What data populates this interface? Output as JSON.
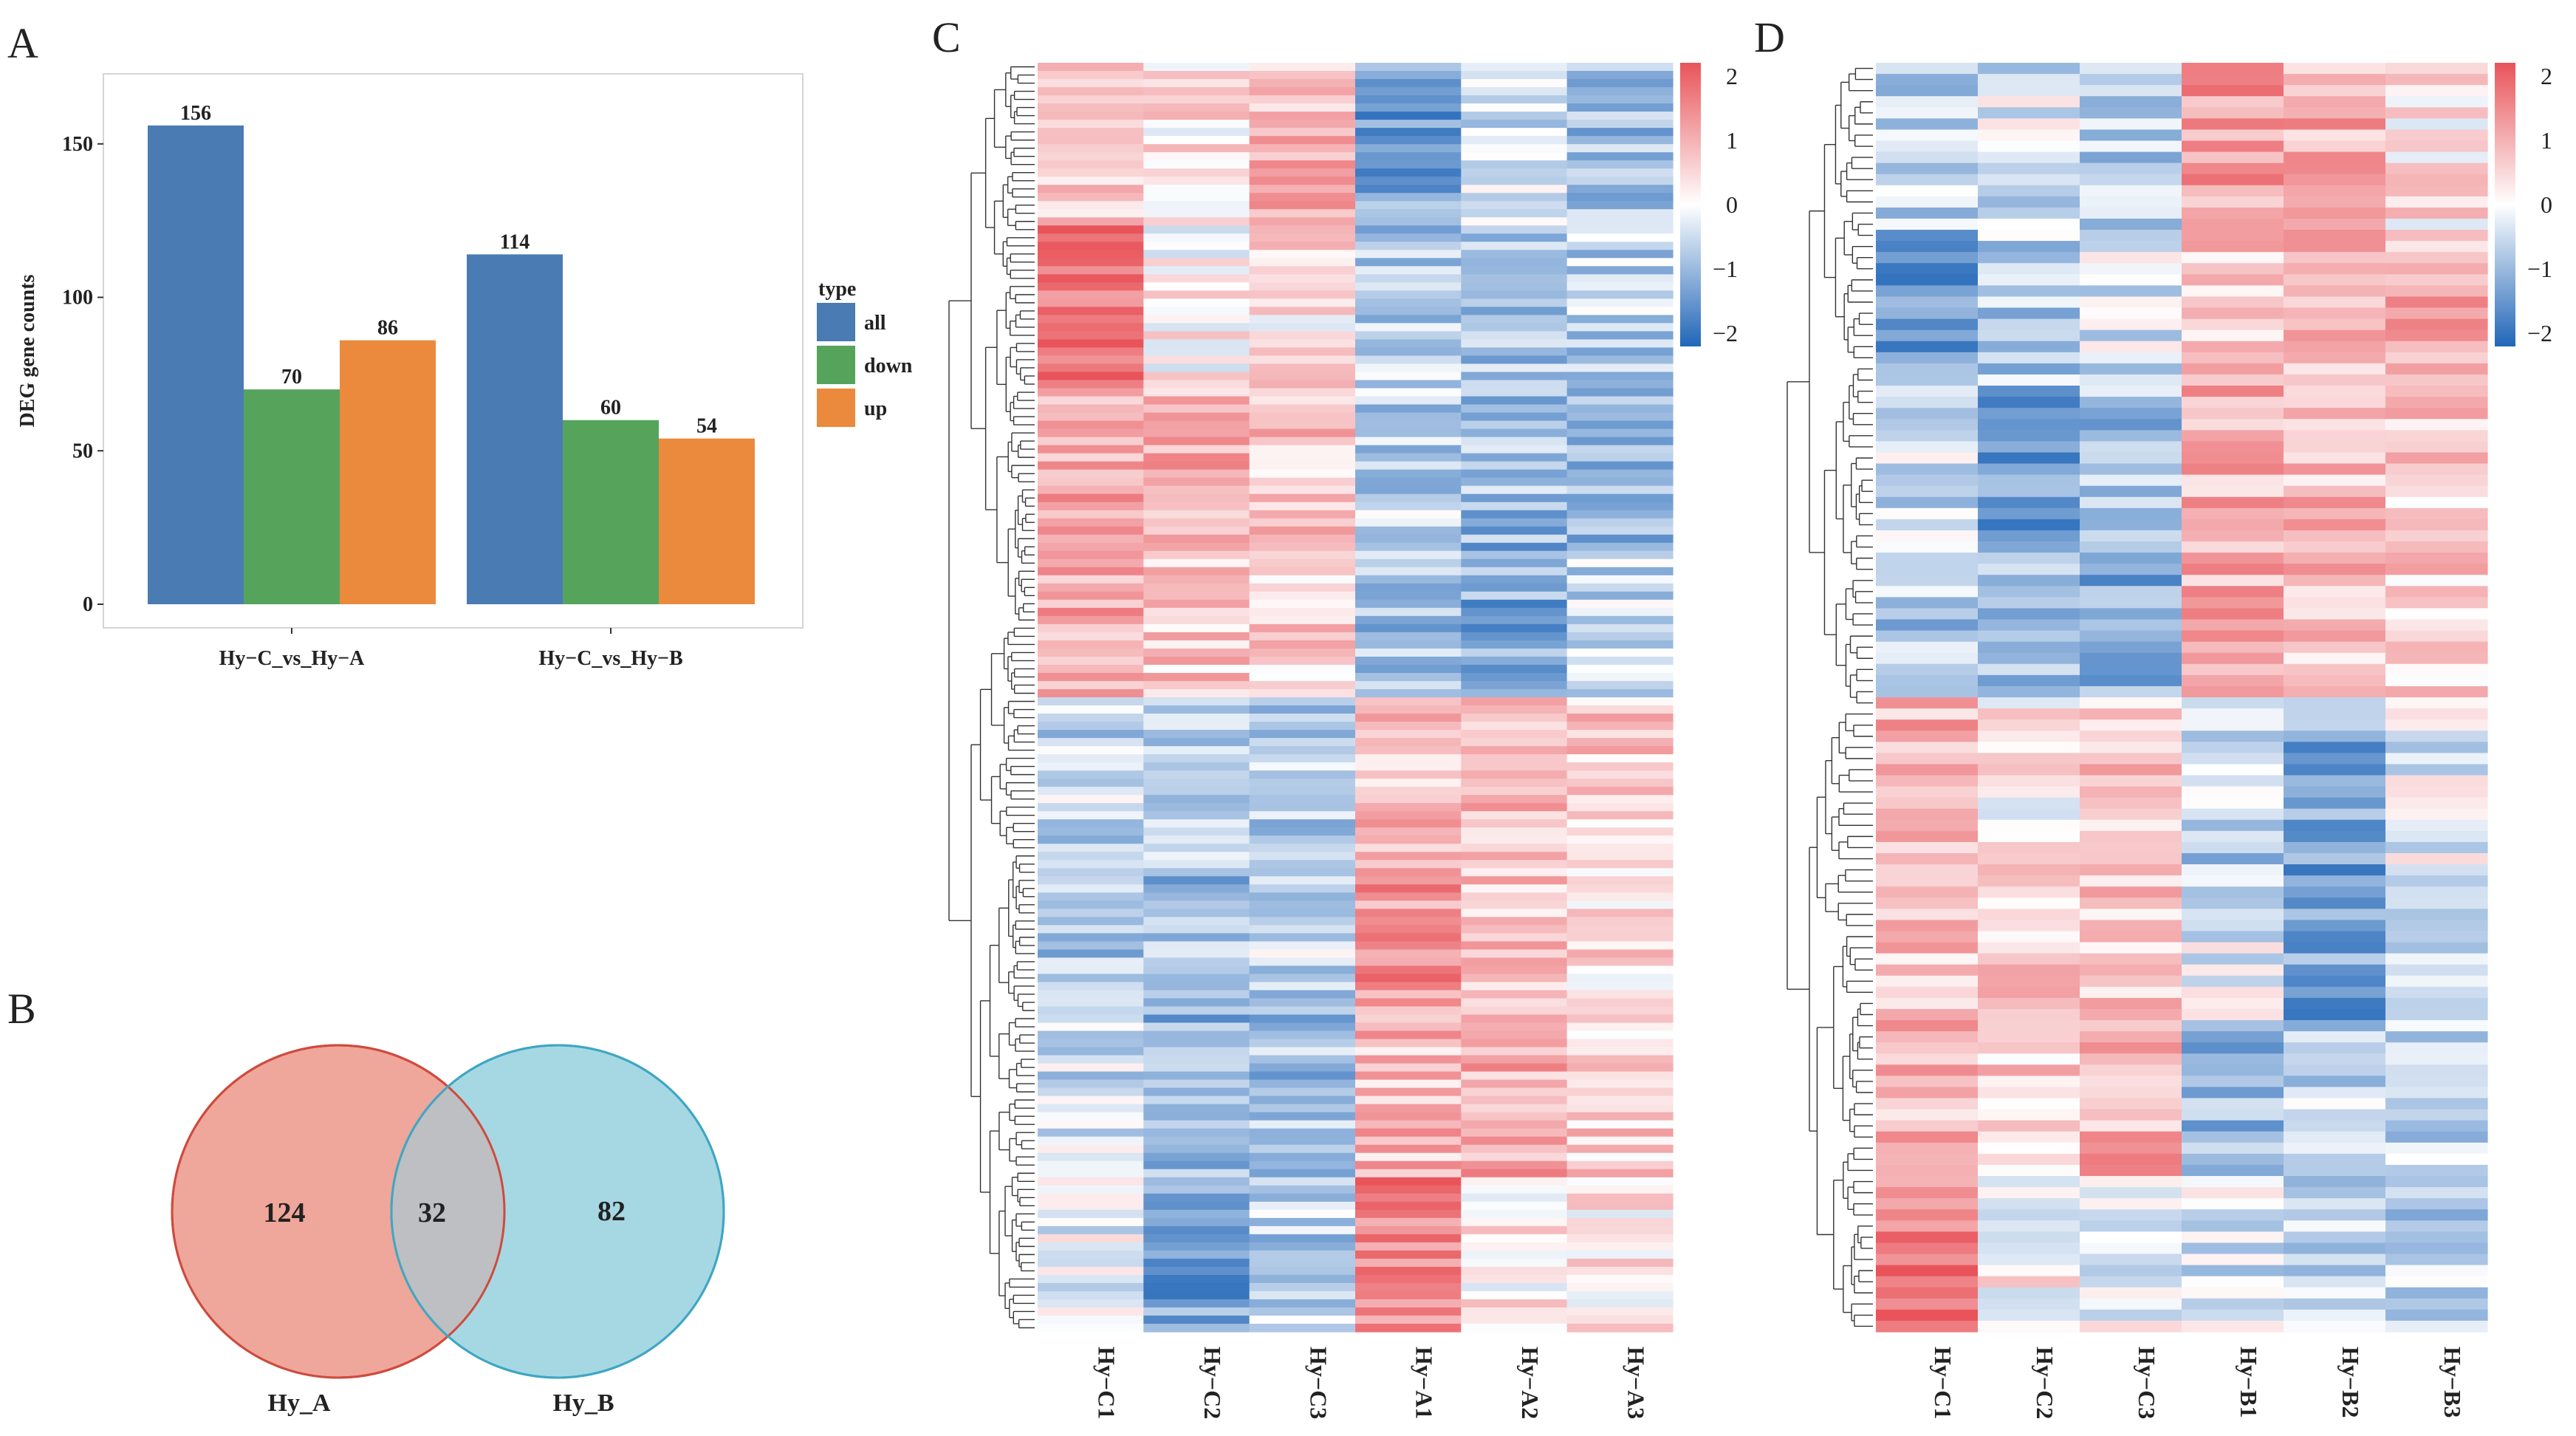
{
  "panels": {
    "a": "A",
    "b": "B",
    "c": "C",
    "d": "D"
  },
  "chart_data": [
    {
      "type": "bar",
      "panel": "A",
      "ylabel": "DEG gene counts",
      "xlabel": "",
      "ylim": [
        0,
        168
      ],
      "yticks": [
        "0",
        "50",
        "100",
        "150"
      ],
      "categories": [
        "Hy−C_vs_Hy−A",
        "Hy−C_vs_Hy−B"
      ],
      "legend_title": "type",
      "legend_position": "right",
      "series": [
        {
          "name": "all",
          "color": "#4a7bb3",
          "values": [
            156,
            114
          ]
        },
        {
          "name": "down",
          "color": "#56a35c",
          "values": [
            70,
            60
          ]
        },
        {
          "name": "up",
          "color": "#eb8a3d",
          "values": [
            86,
            54
          ]
        }
      ]
    },
    {
      "type": "venn",
      "panel": "B",
      "sets": [
        {
          "name": "Hy_A",
          "only": "124",
          "fill": "#efa69b",
          "stroke": "#cf4a3d"
        },
        {
          "name": "Hy_B",
          "only": "82",
          "fill": "#a6d8e3",
          "stroke": "#3fa6c3"
        }
      ],
      "overlap": "32",
      "overlap_fill": "#bdbfc2"
    },
    {
      "type": "heatmap",
      "panel": "C",
      "columns": [
        "Hy−C1",
        "Hy−C2",
        "Hy−C3",
        "Hy−A1",
        "Hy−A2",
        "Hy−A3"
      ],
      "rows": 156,
      "colorbar_ticks": [
        "2",
        "1",
        "0",
        "−1",
        "−2"
      ],
      "colorbar_range": [
        -2,
        2
      ],
      "cluster_split_row": 0.44,
      "profiles": [
        [
          0.7,
          0.3,
          0.8,
          -1.2,
          -0.4,
          -0.8
        ],
        [
          1.6,
          0.1,
          0.3,
          -0.7,
          -0.8,
          -0.6
        ],
        [
          0.9,
          0.9,
          0.7,
          -0.6,
          -0.9,
          -0.9
        ],
        [
          1.0,
          0.6,
          0.5,
          -0.8,
          -1.1,
          -0.5
        ],
        [
          -0.5,
          -0.5,
          -0.6,
          0.8,
          0.7,
          0.6
        ],
        [
          -0.7,
          -0.9,
          -0.5,
          1.2,
          0.6,
          0.4
        ],
        [
          -0.4,
          -1.0,
          -0.8,
          0.8,
          0.9,
          0.5
        ],
        [
          -0.2,
          -1.2,
          -0.6,
          1.4,
          0.3,
          0.2
        ]
      ]
    },
    {
      "type": "heatmap",
      "panel": "D",
      "columns": [
        "Hy−C1",
        "Hy−C2",
        "Hy−C3",
        "Hy−B1",
        "Hy−B2",
        "Hy−B3"
      ],
      "rows": 114,
      "colorbar_ticks": [
        "2",
        "1",
        "0",
        "−1",
        "−2"
      ],
      "colorbar_range": [
        -2,
        2
      ],
      "cluster_split_row": 0.51,
      "profiles": [
        [
          -0.6,
          -0.3,
          -0.6,
          1.1,
          0.9,
          0.3
        ],
        [
          -1.3,
          -0.6,
          -0.3,
          0.6,
          0.8,
          0.9
        ],
        [
          -0.4,
          -1.3,
          -0.8,
          0.9,
          0.8,
          0.6
        ],
        [
          -0.7,
          -0.7,
          -1.0,
          0.9,
          0.7,
          0.6
        ],
        [
          0.9,
          0.2,
          0.6,
          -0.6,
          -1.1,
          -0.2
        ],
        [
          0.7,
          0.5,
          0.7,
          -0.2,
          -1.2,
          -0.7
        ],
        [
          0.8,
          0.5,
          0.9,
          -1.0,
          -0.6,
          -0.6
        ],
        [
          1.5,
          0.1,
          -0.1,
          -0.3,
          -0.6,
          -0.6
        ]
      ]
    }
  ]
}
